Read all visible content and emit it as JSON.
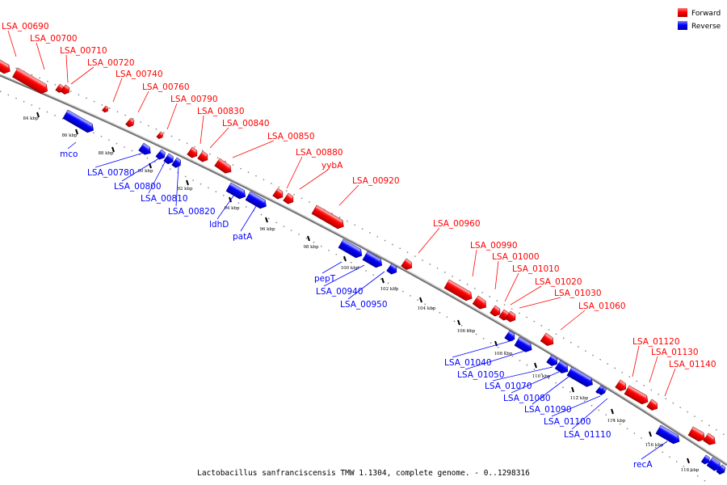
{
  "legend": [
    {
      "label": "Forward",
      "color": "#ff0000"
    },
    {
      "label": "Reverse",
      "color": "#0000ff"
    }
  ],
  "caption": "Lactobacillus sanfranciscensis TMW 1.1304, complete genome. - 0..1298316",
  "colors": {
    "forward": "#ff0000",
    "reverse": "#0000ff",
    "backbone": "#888888"
  },
  "ticks": [
    "84 kbp",
    "86 kbp",
    "88 kbp",
    "90 kbp",
    "92 kbp",
    "94 kbp",
    "96 kbp",
    "98 kbp",
    "100 kbp",
    "102 kbp",
    "104 kbp",
    "106 kbp",
    "108 kbp",
    "110 kbp",
    "112 kbp",
    "114 kbp",
    "116 kbp",
    "118 kbp"
  ],
  "forward_genes": [
    "LSA_00690",
    "LSA_00700",
    "LSA_00710",
    "LSA_00720",
    "LSA_00740",
    "LSA_00760",
    "LSA_00790",
    "LSA_00830",
    "LSA_00840",
    "LSA_00850",
    "LSA_00880",
    "yybA",
    "LSA_00920",
    "LSA_00960",
    "LSA_00990",
    "LSA_01000",
    "LSA_01010",
    "LSA_01020",
    "LSA_01030",
    "LSA_01060",
    "LSA_01120",
    "LSA_01130",
    "LSA_01140"
  ],
  "reverse_genes": [
    "mco",
    "LSA_00780",
    "LSA_00800",
    "LSA_00810",
    "LSA_00820",
    "ldhD",
    "patA",
    "pepT",
    "LSA_00940",
    "LSA_00950",
    "LSA_01040",
    "LSA_01050",
    "LSA_01070",
    "LSA_01080",
    "LSA_01090",
    "LSA_01100",
    "LSA_01110",
    "recA"
  ]
}
